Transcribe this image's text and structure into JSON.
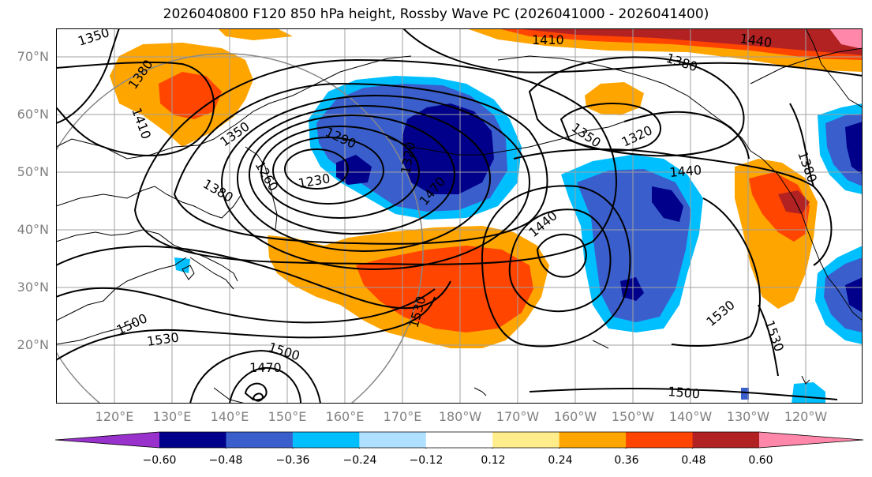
{
  "title": "2026040800 F120 850 hPa height, Rossby Wave PC (2026041000 - 2026041400)",
  "lat_labels": [
    "70°N",
    "60°N",
    "50°N",
    "40°N",
    "30°N",
    "20°N"
  ],
  "lon_labels": [
    "120°E",
    "130°E",
    "140°E",
    "150°E",
    "160°E",
    "170°E",
    "180°W",
    "170°W",
    "160°W",
    "150°W",
    "140°W",
    "130°W",
    "120°W"
  ],
  "contour_labels": {
    "c1350a": "1350",
    "c1380a": "1380",
    "c1410a": "1410",
    "c1350b": "1350",
    "c1290": "1290",
    "c1260": "1260",
    "c1230": "1230",
    "c1320a": "1320",
    "c1470a": "1470",
    "c1380b": "1380",
    "c1410b": "1410",
    "c1440a": "1440",
    "c1380c": "1380",
    "c1350c": "1350",
    "c1320b": "1320",
    "c1440b": "1440",
    "c1380d": "1380",
    "c1440c": "1440",
    "c1530a": "1530",
    "c1530b": "1530",
    "c1530c": "1530",
    "c1500a": "1500",
    "c1530d": "1530",
    "c1500b": "1500",
    "c1470b": "1470",
    "c1500c": "1500"
  },
  "colorbar": {
    "ticks": [
      "−0.60",
      "−0.48",
      "−0.36",
      "−0.24",
      "−0.12",
      "0.12",
      "0.24",
      "0.36",
      "0.48",
      "0.60"
    ],
    "colors": [
      "#9932cc",
      "#00008b",
      "#3a5fcd",
      "#00bfff",
      "#b0e0ff",
      "#ffffff",
      "#ffec8b",
      "#ffa500",
      "#ff4500",
      "#b22222",
      "#ff88aa"
    ]
  },
  "colors": {
    "strong_neg": "#00008b",
    "mid_neg": "#3a5fcd",
    "weak_neg": "#00bfff",
    "weak_pos": "#ffa500",
    "mid_pos": "#ff4500",
    "strong_pos": "#b22222",
    "extreme_pos": "#ff88aa",
    "contour": "#000000",
    "grid": "#a0a0a0"
  }
}
